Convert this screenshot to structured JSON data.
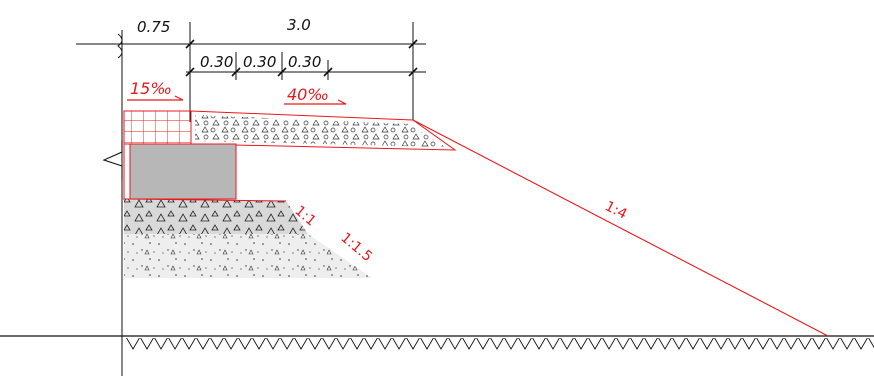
{
  "colors": {
    "line": "#111111",
    "accent": "#e8191c",
    "fill_grey": "#b7b7b7",
    "fill_light": "#eeeeee",
    "fill_mid": "#d9d9d9"
  },
  "dimensions": {
    "left_width": "0.75",
    "total_width": "3.0",
    "sub_1": "0.30",
    "sub_2": "0.30",
    "sub_3": "0.30"
  },
  "grades": {
    "left": "15‰",
    "right": "40‰"
  },
  "slopes": {
    "upper_layer": "1:1",
    "lower_layer": "1:1.5",
    "embankment": "1:4"
  }
}
